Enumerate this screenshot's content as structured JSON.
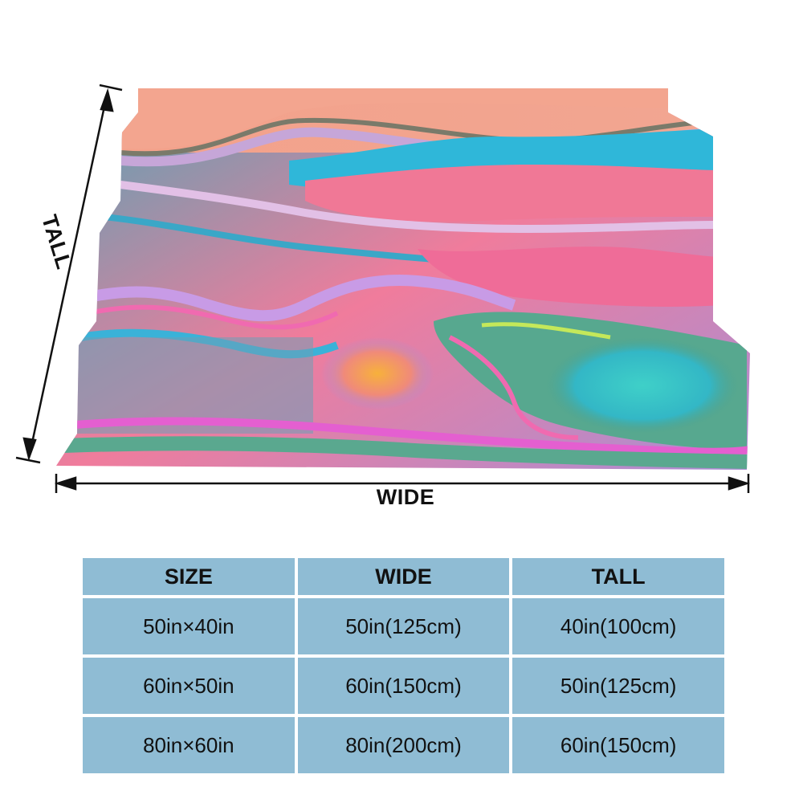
{
  "product": {
    "wide_label": "WIDE",
    "tall_label": "TALL"
  },
  "size_table": {
    "headers": [
      "SIZE",
      "WIDE",
      "TALL"
    ],
    "rows": [
      [
        "50in×40in",
        "50in(125cm)",
        "40in(100cm)"
      ],
      [
        "60in×50in",
        "60in(150cm)",
        "50in(125cm)"
      ],
      [
        "80in×60in",
        "80in(200cm)",
        "60in(150cm)"
      ]
    ]
  },
  "colors": {
    "table_cell": "#8fbcd4",
    "table_border": "#ffffff",
    "text": "#111111",
    "blanket_palette": [
      "#f2a48f",
      "#c6a6d8",
      "#2fb7d9",
      "#f06aa0",
      "#5aa88f",
      "#f3a640",
      "#34c6c0",
      "#e45fd0"
    ]
  }
}
